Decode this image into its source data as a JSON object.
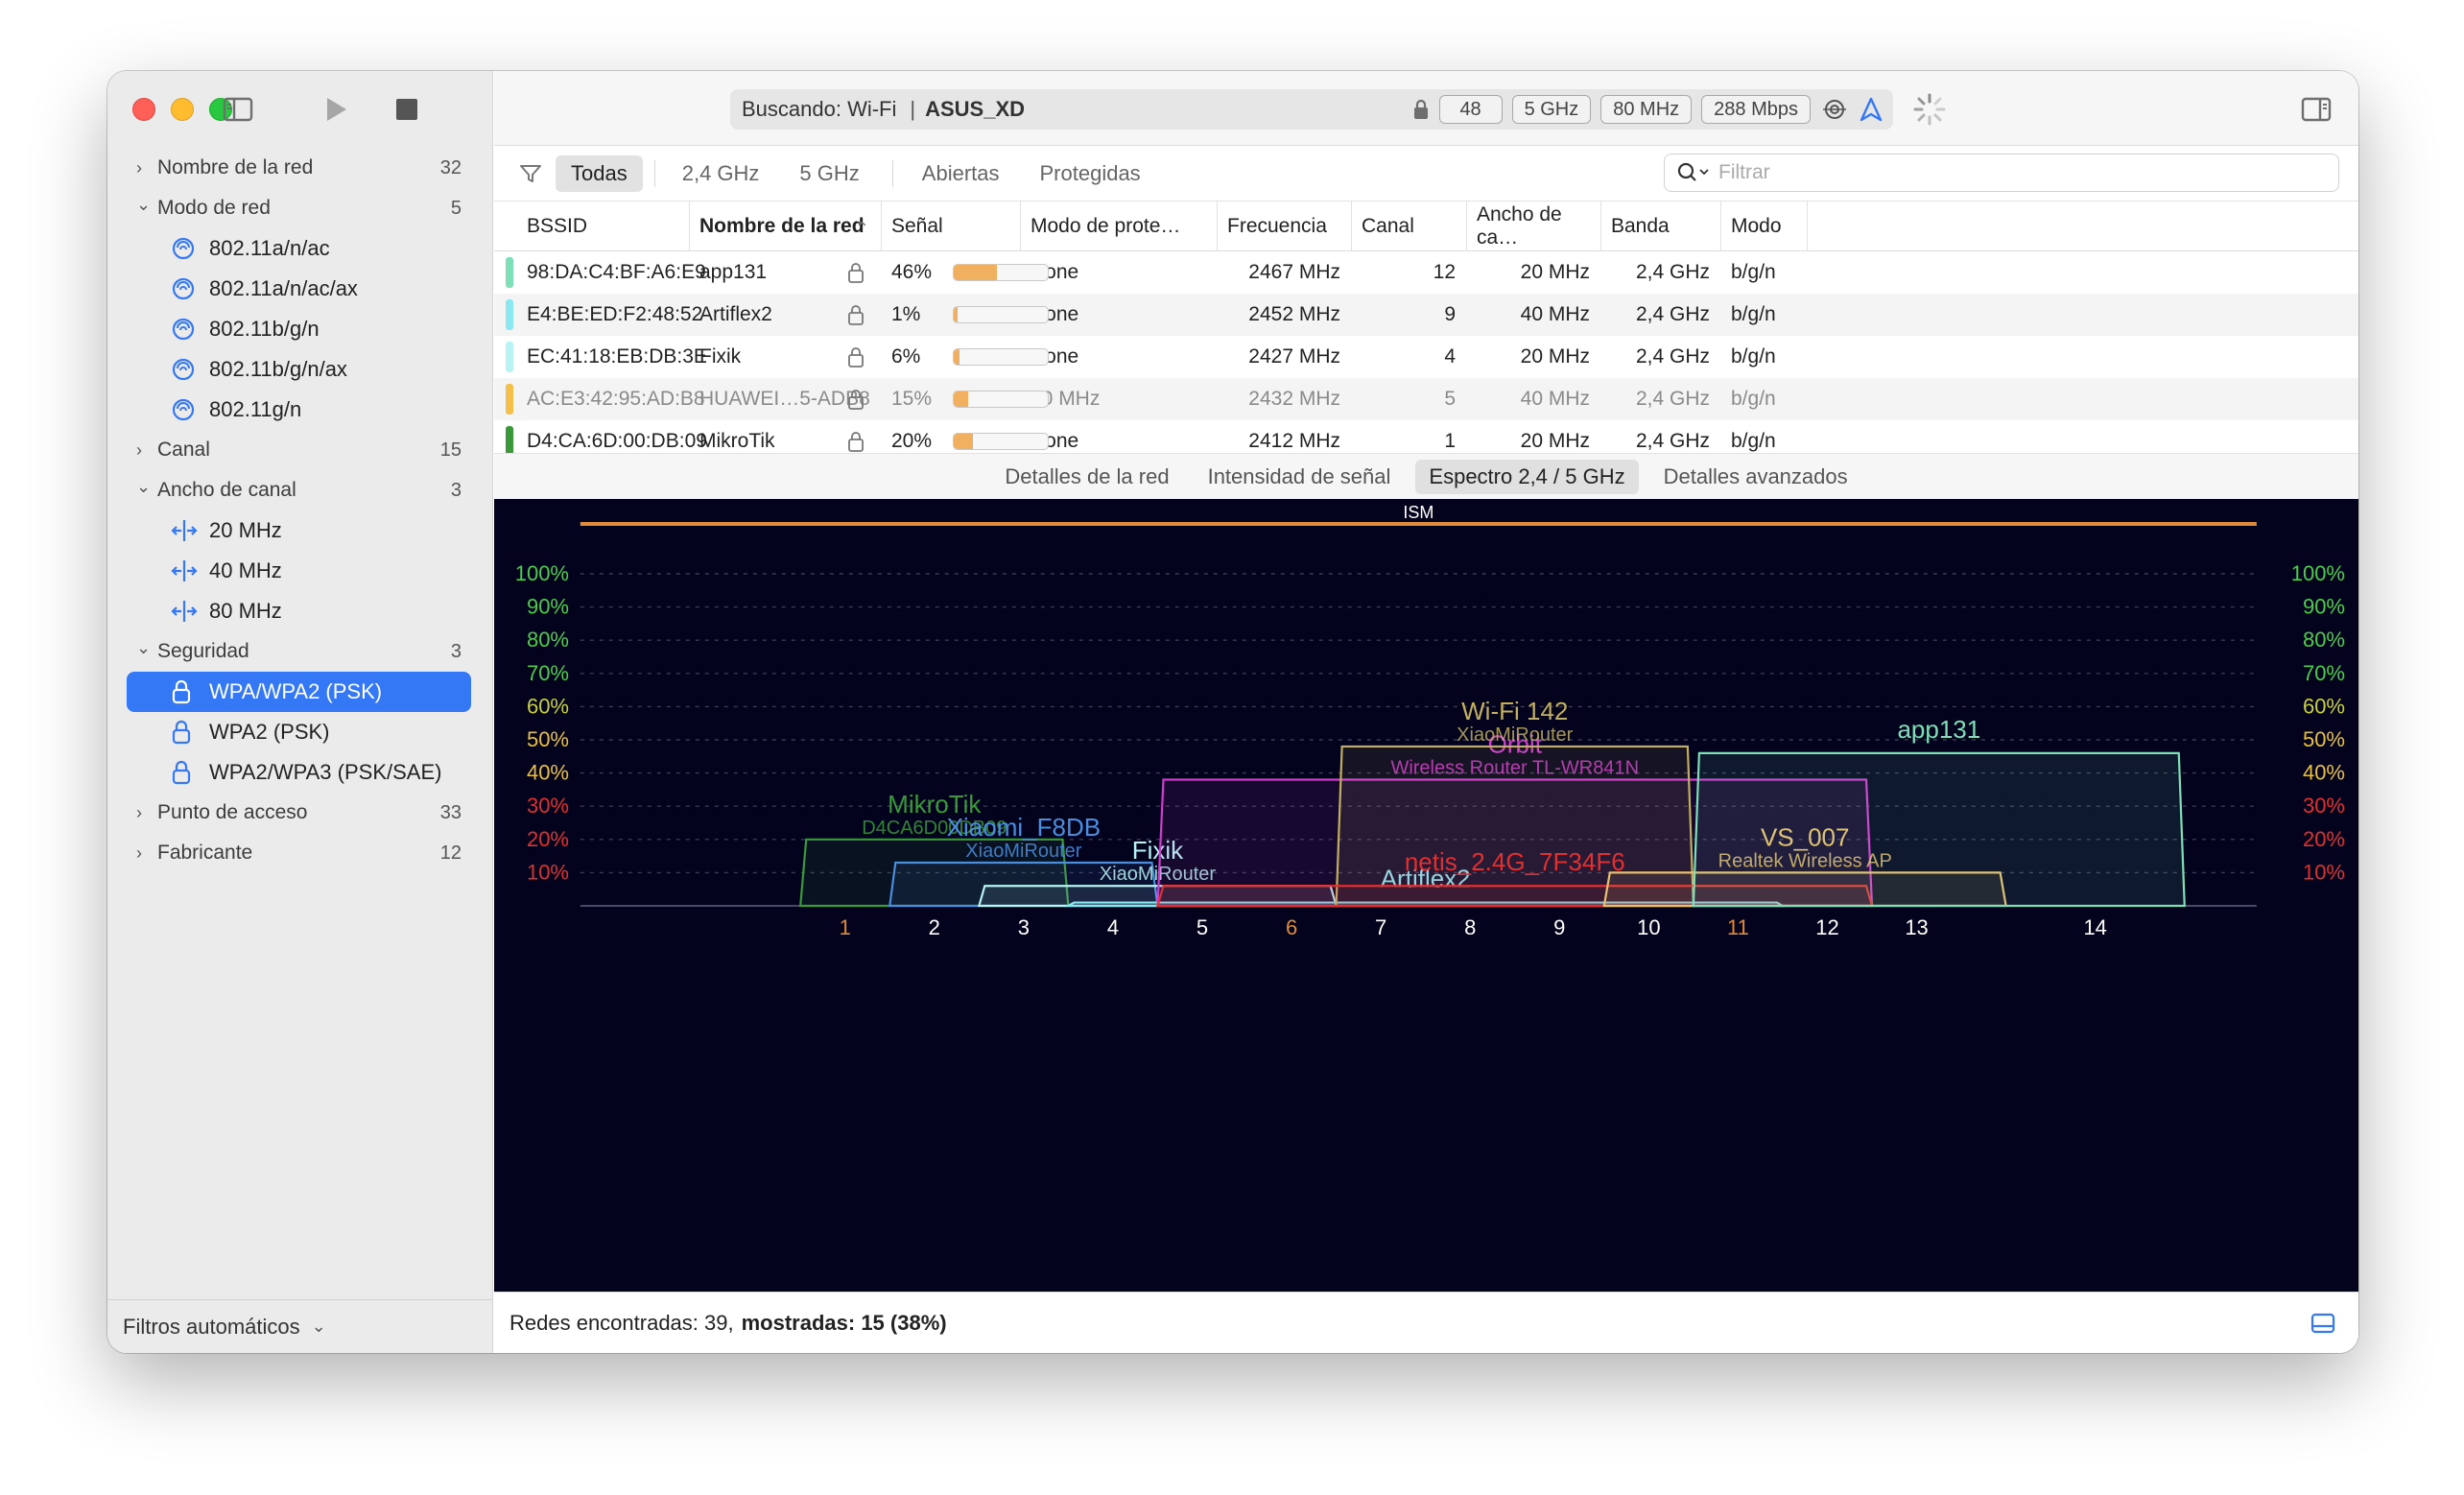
{
  "toolbar": {
    "status_label": "Buscando: Wi-Fi",
    "separator": "|",
    "network": "ASUS_XD",
    "channel": "48",
    "band": "5 GHz",
    "width": "80 MHz",
    "rate": "288 Mbps"
  },
  "sidebar": {
    "groups": [
      {
        "label": "Nombre de la red",
        "count": "32",
        "expanded": false
      },
      {
        "label": "Modo de red",
        "count": "5",
        "expanded": true,
        "children": [
          "802.11a/n/ac",
          "802.11a/n/ac/ax",
          "802.11b/g/n",
          "802.11b/g/n/ax",
          "802.11g/n"
        ]
      },
      {
        "label": "Canal",
        "count": "15",
        "expanded": false
      },
      {
        "label": "Ancho de canal",
        "count": "3",
        "expanded": true,
        "children": [
          "20 MHz",
          "40 MHz",
          "80 MHz"
        ]
      },
      {
        "label": "Seguridad",
        "count": "3",
        "expanded": true,
        "children": [
          "WPA/WPA2 (PSK)",
          "WPA2 (PSK)",
          "WPA2/WPA3 (PSK/SAE)"
        ]
      },
      {
        "label": "Punto de acceso",
        "count": "33",
        "expanded": false
      },
      {
        "label": "Fabricante",
        "count": "12",
        "expanded": false
      }
    ],
    "footer": "Filtros automáticos"
  },
  "filters": {
    "items": [
      "Todas",
      "2,4 GHz",
      "5 GHz",
      "Abiertas",
      "Protegidas"
    ],
    "active": "Todas",
    "search_placeholder": "Filtrar"
  },
  "table": {
    "headers": [
      "BSSID",
      "Nombre de la red",
      "Señal",
      "Modo de prote…",
      "Frecuencia",
      "Canal",
      "Ancho de ca…",
      "Banda",
      "Modo"
    ],
    "rows": [
      {
        "color": "#7de0b8",
        "bssid": "98:DA:C4:BF:A6:E9",
        "name": "app131",
        "signal": "46%",
        "signal_value": 0.46,
        "protection": "None",
        "freq": "2467 MHz",
        "channel": "12",
        "width": "20 MHz",
        "band": "2,4 GHz",
        "mode": "b/g/n",
        "dim": false
      },
      {
        "color": "#8ae8f0",
        "bssid": "E4:BE:ED:F2:48:52",
        "name": "Artiflex2",
        "signal": "1%",
        "signal_value": 0.01,
        "protection": "None",
        "freq": "2452 MHz",
        "channel": "9",
        "width": "40 MHz",
        "band": "2,4 GHz",
        "mode": "b/g/n",
        "dim": false
      },
      {
        "color": "#b8f4f4",
        "bssid": "EC:41:18:EB:DB:3E",
        "name": "Fixik",
        "signal": "6%",
        "signal_value": 0.06,
        "protection": "None",
        "freq": "2427 MHz",
        "channel": "4",
        "width": "20 MHz",
        "band": "2,4 GHz",
        "mode": "b/g/n",
        "dim": false
      },
      {
        "color": "#f4c04a",
        "bssid": "AC:E3:42:95:AD:B8",
        "name": "HUAWEI…5-ADB8",
        "signal": "15%",
        "signal_value": 0.15,
        "protection": "20 MHz",
        "freq": "2432 MHz",
        "channel": "5",
        "width": "40 MHz",
        "band": "2,4 GHz",
        "mode": "b/g/n",
        "dim": true
      },
      {
        "color": "#3a9a3a",
        "bssid": "D4:CA:6D:00:DB:09",
        "name": "MikroTik",
        "signal": "20%",
        "signal_value": 0.2,
        "protection": "None",
        "freq": "2412 MHz",
        "channel": "1",
        "width": "20 MHz",
        "band": "2,4 GHz",
        "mode": "b/g/n",
        "dim": false
      }
    ]
  },
  "tabs": {
    "items": [
      "Detalles de la red",
      "Intensidad de señal",
      "Espectro 2,4 / 5 GHz",
      "Detalles avanzados"
    ],
    "active": "Espectro 2,4 / 5 GHz"
  },
  "chart_data": {
    "type": "area",
    "band_label": "ISM",
    "y_ticks": [
      "100%",
      "90%",
      "80%",
      "70%",
      "60%",
      "50%",
      "40%",
      "30%",
      "20%",
      "10%"
    ],
    "y_range": [
      0,
      100
    ],
    "x_ticks": [
      "1",
      "2",
      "3",
      "4",
      "5",
      "6",
      "7",
      "8",
      "9",
      "10",
      "11",
      "12",
      "13",
      "14"
    ],
    "x_highlight_ticks": [
      "1",
      "6",
      "11"
    ],
    "networks": [
      {
        "name": "MikroTik",
        "subtitle": "D4CA6D00DB09",
        "from": 0,
        "to": 3,
        "level": 20,
        "color": "#3a9a3a"
      },
      {
        "name": "Xiaomi_F8DB",
        "subtitle": "XiaoMiRouter",
        "from": 1,
        "to": 4,
        "level": 13,
        "color": "#4a8ee0"
      },
      {
        "name": "Fixik",
        "subtitle": "XiaoMiRouter",
        "from": 2,
        "to": 6,
        "level": 6,
        "color": "#b8f4f4"
      },
      {
        "name": "Artiflex2",
        "subtitle": "",
        "from": 3,
        "to": 11,
        "level": 1,
        "color": "#8ae8f0"
      },
      {
        "name": "Orbit",
        "subtitle": "Wireless Router TL-WR841N",
        "from": 4,
        "to": 12,
        "level": 38,
        "color": "#d23ad2"
      },
      {
        "name": "Wi-Fi 142",
        "subtitle": "XiaoMiRouter",
        "from": 6,
        "to": 10,
        "level": 48,
        "color": "#c2b060"
      },
      {
        "name": "netis_2.4G_7F34F6",
        "subtitle": "",
        "from": 4,
        "to": 12,
        "level": 6,
        "color": "#e03030"
      },
      {
        "name": "VS_007",
        "subtitle": "Realtek Wireless AP",
        "from": 9,
        "to": 13,
        "level": 10,
        "color": "#e8c070"
      },
      {
        "name": "app131",
        "subtitle": "",
        "from": 10,
        "to": 14,
        "level": 46,
        "color": "#7de0b8"
      }
    ]
  },
  "footer": {
    "found": "Redes encontradas: 39,",
    "shown": "mostradas: 15 (38%)"
  }
}
